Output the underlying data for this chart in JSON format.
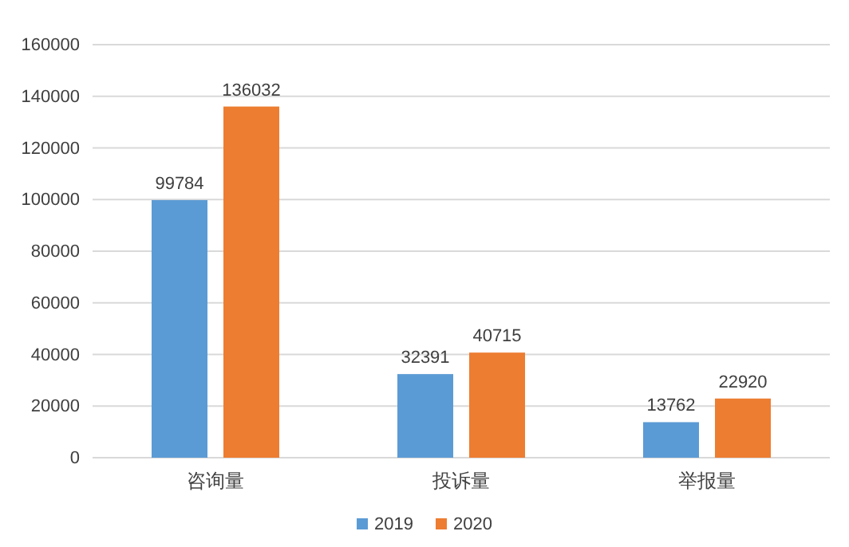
{
  "chart_data": {
    "type": "bar",
    "categories": [
      "咨询量",
      "投诉量",
      "举报量"
    ],
    "series": [
      {
        "name": "2019",
        "color": "#5b9bd5",
        "values": [
          99784,
          32391,
          13762
        ]
      },
      {
        "name": "2020",
        "color": "#ed7d31",
        "values": [
          136032,
          40715,
          22920
        ]
      }
    ],
    "ylim": [
      0,
      160000
    ],
    "yticks": [
      0,
      20000,
      40000,
      60000,
      80000,
      100000,
      120000,
      140000,
      160000
    ],
    "grid": "y",
    "data_labels": true,
    "legend": "bottom"
  }
}
